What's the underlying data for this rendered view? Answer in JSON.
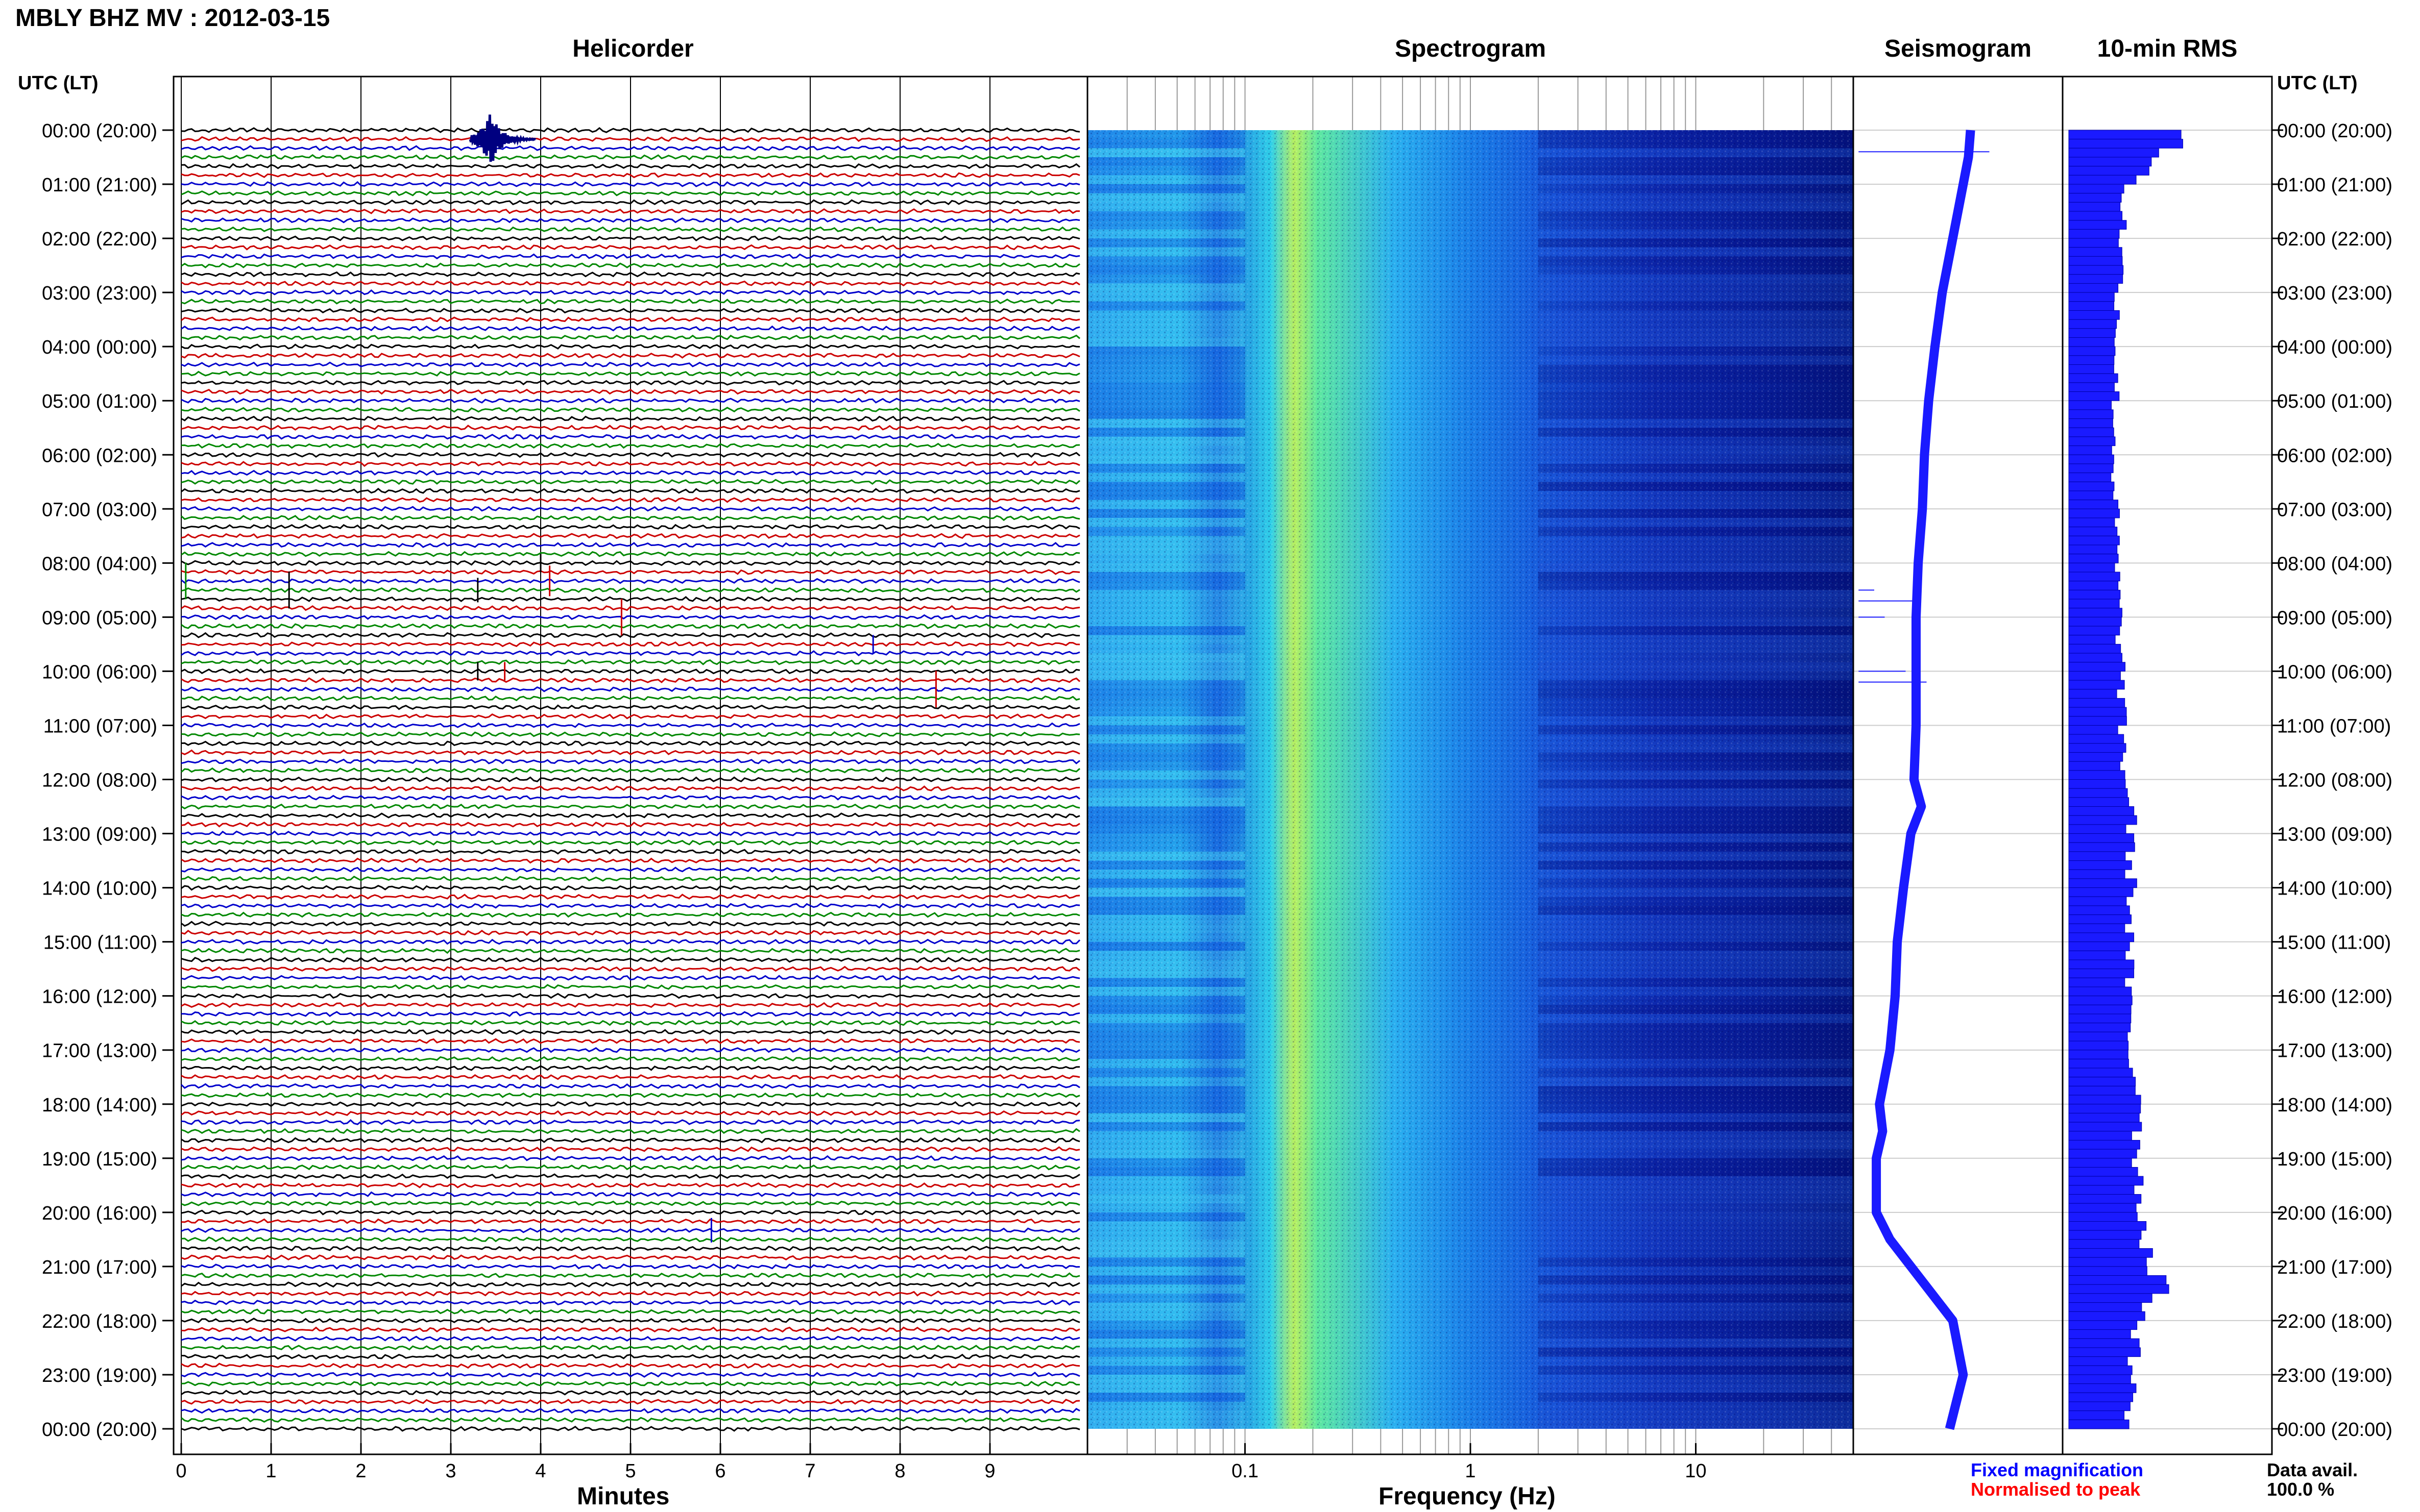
{
  "title": "MBLY BHZ MV : 2012-03-15",
  "panels": {
    "helicorder": "Helicorder",
    "spectrogram": "Spectrogram",
    "seismogram": "Seismogram",
    "rms": "10-min RMS"
  },
  "time_axis_label": "UTC (LT)",
  "time_labels": [
    "00:00 (20:00)",
    "01:00 (21:00)",
    "02:00 (22:00)",
    "03:00 (23:00)",
    "04:00 (00:00)",
    "05:00 (01:00)",
    "06:00 (02:00)",
    "07:00 (03:00)",
    "08:00 (04:00)",
    "09:00 (05:00)",
    "10:00 (06:00)",
    "11:00 (07:00)",
    "12:00 (08:00)",
    "13:00 (09:00)",
    "14:00 (10:00)",
    "15:00 (11:00)",
    "16:00 (12:00)",
    "17:00 (13:00)",
    "18:00 (14:00)",
    "19:00 (15:00)",
    "20:00 (16:00)",
    "21:00 (17:00)",
    "22:00 (18:00)",
    "23:00 (19:00)",
    "00:00 (20:00)"
  ],
  "legend": {
    "fixed": "Fixed magnification",
    "normalised": "Normalised to peak",
    "data_avail_label": "Data avail.",
    "data_avail_value": "100.0 %"
  },
  "colors": {
    "trace_cycle": [
      "#000000",
      "#cc0000",
      "#0000cc",
      "#008800"
    ],
    "seismogram": "#1a1aff",
    "rms": "#1a1aff",
    "fixed_legend": "#0000ff",
    "normalised_legend": "#ff0000"
  },
  "chart_data": [
    {
      "type": "line",
      "name": "helicorder",
      "title": "Helicorder",
      "xlabel": "Minutes",
      "x_ticks": [
        0,
        1,
        2,
        3,
        4,
        5,
        6,
        7,
        8,
        9
      ],
      "xlim": [
        0,
        10
      ],
      "rows_per_hour": 6,
      "hours": 24,
      "events": [
        {
          "hour": 0.17,
          "minute": 3.5,
          "amp": 0.9,
          "color": "#000080"
        },
        {
          "hour": 8.0,
          "minute": 4.0,
          "amp": 0.3,
          "color": "#000000"
        },
        {
          "hour": 8.33,
          "minute": 0.05,
          "amp": 0.6,
          "color": "#008800"
        },
        {
          "hour": 8.5,
          "minute": 1.2,
          "amp": 0.6,
          "color": "#000000"
        },
        {
          "hour": 8.5,
          "minute": 3.3,
          "amp": 0.4,
          "color": "#000000"
        },
        {
          "hour": 8.33,
          "minute": 4.1,
          "amp": 0.5,
          "color": "#cc0000"
        },
        {
          "hour": 9.0,
          "minute": 4.9,
          "amp": 0.6,
          "color": "#cc0000"
        },
        {
          "hour": 9.5,
          "minute": 7.7,
          "amp": 0.3,
          "color": "#0000cc"
        },
        {
          "hour": 10.0,
          "minute": 3.3,
          "amp": 0.3,
          "color": "#000000"
        },
        {
          "hour": 10.0,
          "minute": 3.6,
          "amp": 0.3,
          "color": "#cc0000"
        },
        {
          "hour": 10.33,
          "minute": 8.4,
          "amp": 0.6,
          "color": "#cc0000"
        },
        {
          "hour": 20.33,
          "minute": 5.9,
          "amp": 0.4,
          "color": "#0000cc"
        }
      ]
    },
    {
      "type": "heatmap",
      "name": "spectrogram",
      "title": "Spectrogram",
      "xlabel": "Frequency (Hz)",
      "x_scale": "log",
      "xlim": [
        0.02,
        50
      ],
      "x_ticks": [
        0.1,
        1,
        10
      ],
      "x_tick_labels": [
        "0.1",
        "1",
        "10"
      ],
      "ylim_hours": [
        0,
        24
      ],
      "peak_band_hz": [
        0.15,
        0.3
      ]
    },
    {
      "type": "line",
      "name": "seismogram",
      "title": "Seismogram",
      "hours": [
        0,
        0.5,
        1,
        2,
        3,
        4,
        5,
        6,
        7,
        8,
        9,
        10,
        11,
        12,
        12.5,
        13,
        14,
        15,
        16,
        17,
        18,
        18.5,
        19,
        20,
        20.5,
        21,
        21.5,
        22,
        23,
        24
      ],
      "values": [
        0.12,
        0.1,
        0.05,
        -0.05,
        -0.15,
        -0.22,
        -0.28,
        -0.32,
        -0.34,
        -0.38,
        -0.4,
        -0.4,
        -0.4,
        -0.42,
        -0.35,
        -0.45,
        -0.52,
        -0.58,
        -0.6,
        -0.65,
        -0.75,
        -0.72,
        -0.78,
        -0.78,
        -0.65,
        -0.45,
        -0.25,
        -0.05,
        0.05,
        -0.08
      ],
      "xlim": [
        -1,
        1
      ]
    },
    {
      "type": "bar",
      "name": "rms",
      "title": "10-min RMS",
      "hours": [
        0.17,
        1,
        2,
        3,
        4,
        5,
        6,
        7,
        8,
        9,
        10,
        11,
        12,
        12.5,
        13,
        14,
        15,
        16,
        17,
        18,
        18.5,
        19,
        20,
        20.5,
        21,
        21.25,
        21.5,
        22,
        23,
        24
      ],
      "values": [
        0.85,
        0.45,
        0.42,
        0.4,
        0.38,
        0.37,
        0.36,
        0.37,
        0.38,
        0.4,
        0.42,
        0.42,
        0.45,
        0.52,
        0.48,
        0.5,
        0.48,
        0.47,
        0.48,
        0.6,
        0.55,
        0.55,
        0.58,
        0.62,
        0.65,
        0.75,
        0.68,
        0.55,
        0.5,
        0.48
      ],
      "xlim": [
        0,
        1
      ]
    }
  ]
}
